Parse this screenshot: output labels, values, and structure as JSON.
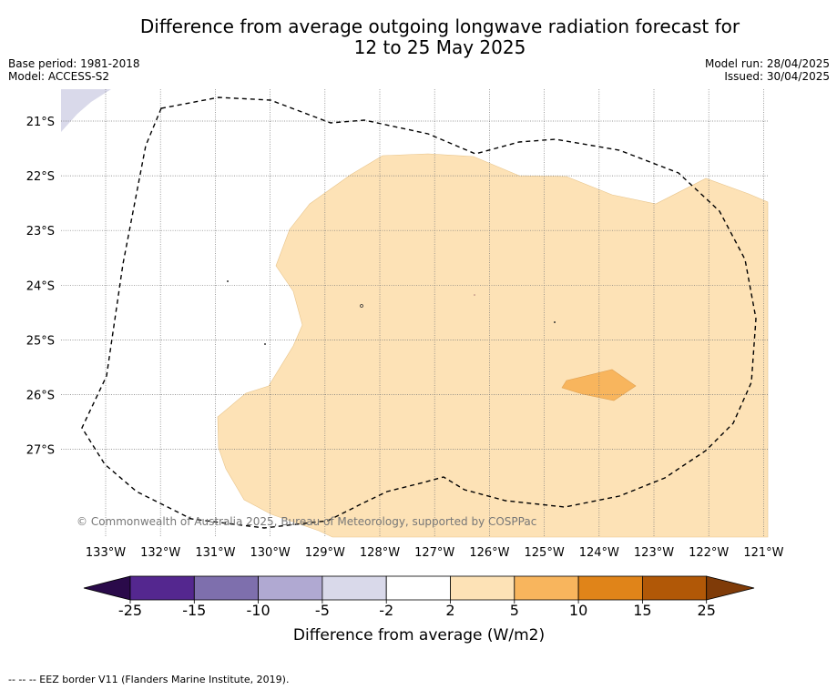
{
  "title_line1": "Difference from average outgoing longwave radiation forecast for",
  "title_line2": "12 to 25 May 2025",
  "meta_left": {
    "base_period": "Base period: 1981-2018",
    "model": "Model: ACCESS-S2"
  },
  "meta_right": {
    "model_run": "Model run: 28/04/2025",
    "issued": "Issued: 30/04/2025"
  },
  "map": {
    "lon_ticks": [
      "133°W",
      "132°W",
      "131°W",
      "130°W",
      "129°W",
      "128°W",
      "127°W",
      "126°W",
      "125°W",
      "124°W",
      "123°W",
      "122°W",
      "121°W"
    ],
    "lat_ticks": [
      "21°S",
      "22°S",
      "23°S",
      "24°S",
      "25°S",
      "26°S",
      "27°S"
    ],
    "copyright": "© Commonwealth of Australia 2025, Bureau of Meteorology, supported by COSPPac"
  },
  "colorbar": {
    "label": "Difference from average (W/m2)",
    "ticks": [
      "-25",
      "-15",
      "-10",
      "-5",
      "-2",
      "2",
      "5",
      "10",
      "15",
      "25"
    ],
    "colors": [
      "#2a0a4a",
      "#54278f",
      "#7e6fad",
      "#b0a9d2",
      "#d9d9ea",
      "#ffffff",
      "#fde2b6",
      "#f8b55d",
      "#e08419",
      "#b15807",
      "#7f3b08"
    ]
  },
  "footer": "--  --  -- EEZ border V11 (Flanders Marine Institute, 2019)."
}
